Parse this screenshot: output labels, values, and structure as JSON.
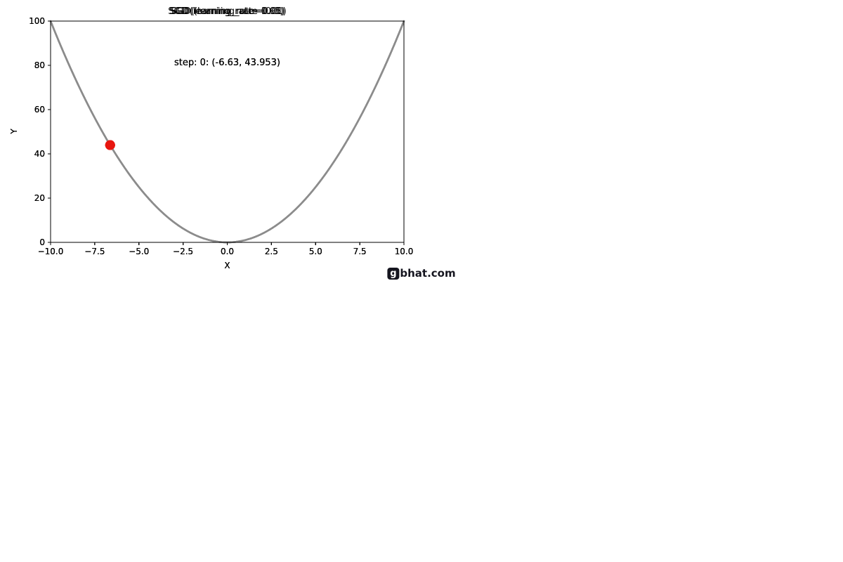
{
  "figure": {
    "background": "#ffffff",
    "watermark": {
      "badge_letter": "g",
      "text": "bhat.com"
    }
  },
  "chart_data": [
    {
      "type": "line",
      "title": "SGD (learning_rate=0.01)",
      "xlabel": "X",
      "ylabel": "Y",
      "xlim": [
        -10,
        10
      ],
      "ylim": [
        0,
        100
      ],
      "grid": false,
      "legend": "none",
      "xticks": {
        "values": [
          -10,
          -7.5,
          -5,
          -2.5,
          0,
          2.5,
          5,
          7.5,
          10
        ],
        "labels": [
          "−10.0",
          "−7.5",
          "−5.0",
          "−2.5",
          "0.0",
          "2.5",
          "5.0",
          "7.5",
          "10.0"
        ]
      },
      "yticks": {
        "values": [
          0,
          20,
          40,
          60,
          80,
          100
        ],
        "labels": [
          "0",
          "20",
          "40",
          "60",
          "80",
          "100"
        ]
      },
      "series": [
        {
          "name": "objective-curve",
          "fn": "y = x^2",
          "color": "#8c8c8c",
          "linewidth": 2.5
        }
      ],
      "points": [
        {
          "name": "current-position",
          "x": -6.63,
          "y": 43.953,
          "color": "#e8160f",
          "radius": 7
        }
      ],
      "annotation": "step: 0: (-6.63, 43.953)"
    },
    {
      "type": "line",
      "title": "SGD (learning_rate=0.1)",
      "xlabel": "X",
      "ylabel": "Y",
      "xlim": [
        -10,
        10
      ],
      "ylim": [
        0,
        100
      ],
      "grid": false,
      "legend": "none",
      "xticks": {
        "values": [
          -10,
          -7.5,
          -5,
          -2.5,
          0,
          2.5,
          5,
          7.5,
          10
        ],
        "labels": [
          "−10.0",
          "−7.5",
          "−5.0",
          "−2.5",
          "0.0",
          "2.5",
          "5.0",
          "7.5",
          "10.0"
        ]
      },
      "yticks": {
        "values": [
          0,
          20,
          40,
          60,
          80,
          100
        ],
        "labels": [
          "0",
          "20",
          "40",
          "60",
          "80",
          "100"
        ]
      },
      "series": [
        {
          "name": "objective-curve",
          "fn": "y = x^2",
          "color": "#8c8c8c",
          "linewidth": 2.5
        }
      ],
      "points": [
        {
          "name": "current-position",
          "x": -6.63,
          "y": 43.953,
          "color": "#e8160f",
          "radius": 7
        }
      ],
      "annotation": "step: 0: (-6.63, 43.953)"
    },
    {
      "type": "line",
      "title": "SGD(learning_rate=0.95)",
      "xlabel": "X",
      "ylabel": "Y",
      "xlim": [
        -10,
        10
      ],
      "ylim": [
        0,
        100
      ],
      "grid": false,
      "legend": "none",
      "xticks": {
        "values": [
          -10,
          -7.5,
          -5,
          -2.5,
          0,
          2.5,
          5,
          7.5,
          10
        ],
        "labels": [
          "−10.0",
          "−7.5",
          "−5.0",
          "−2.5",
          "0.0",
          "2.5",
          "5.0",
          "7.5",
          "10.0"
        ]
      },
      "yticks": {
        "values": [
          0,
          20,
          40,
          60,
          80,
          100
        ],
        "labels": [
          "0",
          "20",
          "40",
          "60",
          "80",
          "100"
        ]
      },
      "series": [
        {
          "name": "objective-curve",
          "fn": "y = x^2",
          "color": "#8c8c8c",
          "linewidth": 2.5
        }
      ],
      "points": [
        {
          "name": "current-position",
          "x": -6.63,
          "y": 43.953,
          "color": "#e8160f",
          "radius": 7
        }
      ],
      "annotation": "step: 0: (-6.63, 43.953)"
    },
    {
      "type": "line",
      "title": "SGD(learning_rate=1.01)",
      "xlabel": "X",
      "ylabel": "Y",
      "xlim": [
        -10,
        10
      ],
      "ylim": [
        0,
        100
      ],
      "grid": false,
      "legend": "none",
      "xticks": {
        "values": [
          -10,
          -7.5,
          -5,
          -2.5,
          0,
          2.5,
          5,
          7.5,
          10
        ],
        "labels": [
          "−10.0",
          "−7.5",
          "−5.0",
          "−2.5",
          "0.0",
          "2.5",
          "5.0",
          "7.5",
          "10.0"
        ]
      },
      "yticks": {
        "values": [
          0,
          20,
          40,
          60,
          80,
          100
        ],
        "labels": [
          "0",
          "20",
          "40",
          "60",
          "80",
          "100"
        ]
      },
      "series": [
        {
          "name": "objective-curve",
          "fn": "y = x^2",
          "color": "#8c8c8c",
          "linewidth": 2.5
        }
      ],
      "points": [
        {
          "name": "current-position",
          "x": -6.63,
          "y": 43.953,
          "color": "#e8160f",
          "radius": 7
        }
      ],
      "annotation": "step: 0: (-6.63, 43.953)"
    }
  ]
}
